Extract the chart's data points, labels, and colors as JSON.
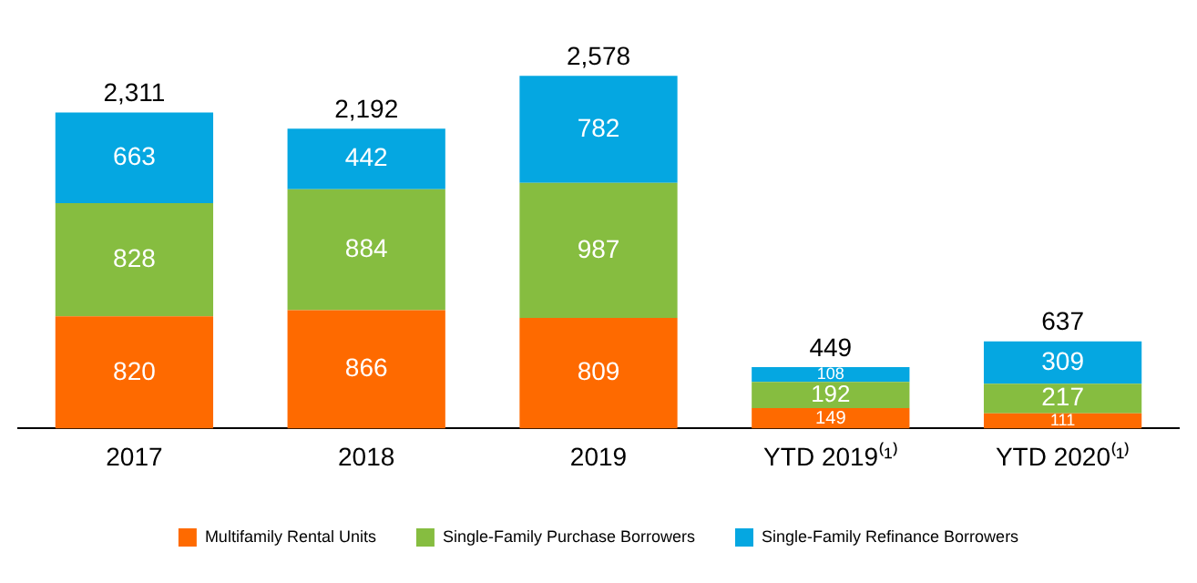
{
  "chart_data": {
    "type": "bar",
    "stacked": true,
    "data_labels": true,
    "legend": "bottom",
    "grid": false,
    "categories": [
      "2017",
      "2018",
      "2019",
      "YTD 2019⁽¹⁾",
      "YTD 2020⁽¹⁾"
    ],
    "series": [
      {
        "name": "Multifamily Rental Units",
        "color": "#fe6a00",
        "values": [
          820,
          866,
          809,
          149,
          111
        ]
      },
      {
        "name": "Single-Family Purchase Borrowers",
        "color": "#86bd40",
        "values": [
          828,
          884,
          987,
          192,
          217
        ]
      },
      {
        "name": "Single-Family Refinance Borrowers",
        "color": "#05a7e1",
        "values": [
          663,
          442,
          782,
          108,
          309
        ]
      }
    ],
    "totals": [
      "2,311",
      "2,192",
      "2,578",
      "449",
      "637"
    ]
  }
}
